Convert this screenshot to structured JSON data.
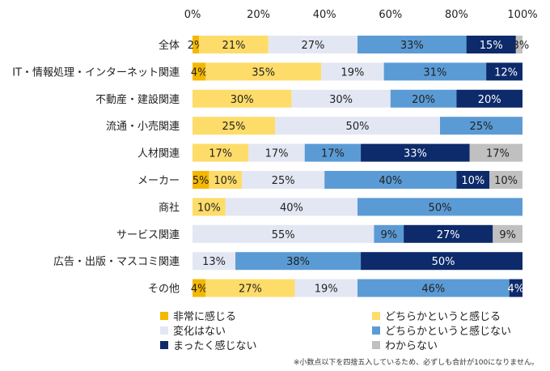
{
  "chart_data": {
    "type": "bar",
    "orientation": "horizontal-stacked-100",
    "xlim": [
      0,
      100
    ],
    "x_ticks": [
      "0%",
      "20%",
      "40%",
      "60%",
      "80%",
      "100%"
    ],
    "categories": [
      "全体",
      "IT・情報処理・インターネット関連",
      "不動産・建設関連",
      "流通・小売関連",
      "人材関連",
      "メーカー",
      "商社",
      "サービス関連",
      "広告・出版・マスコミ関連",
      "その他"
    ],
    "series": [
      {
        "name": "非常に感じる",
        "color": "#f5b800",
        "values": [
          2,
          4,
          0,
          0,
          0,
          5,
          0,
          0,
          0,
          4
        ]
      },
      {
        "name": "どちらかというと感じる",
        "color": "#fedc6a",
        "values": [
          21,
          35,
          30,
          25,
          17,
          10,
          10,
          0,
          0,
          27
        ]
      },
      {
        "name": "変化はない",
        "color": "#e3e7f3",
        "values": [
          27,
          19,
          30,
          50,
          17,
          25,
          40,
          55,
          13,
          19
        ]
      },
      {
        "name": "どちらかというと感じない",
        "color": "#5b9bd5",
        "values": [
          33,
          31,
          20,
          25,
          17,
          40,
          50,
          9,
          38,
          46
        ]
      },
      {
        "name": "まったく感じない",
        "color": "#0d2a6b",
        "values": [
          15,
          12,
          20,
          0,
          33,
          10,
          0,
          27,
          50,
          4
        ]
      },
      {
        "name": "わからない",
        "color": "#c0c0c0",
        "values": [
          3,
          0,
          0,
          0,
          17,
          10,
          0,
          9,
          0,
          0
        ]
      }
    ],
    "xlabel": "",
    "ylabel": "",
    "legend_position": "bottom"
  },
  "note": "※小数点以下を四捨五入しているため、必ずしも合計が100になりません。"
}
